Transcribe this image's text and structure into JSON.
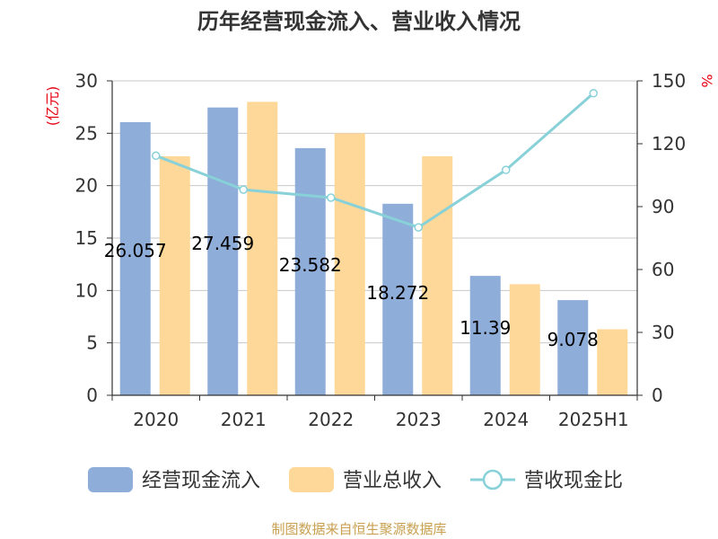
{
  "chart_data": {
    "type": "bar",
    "title": "历年经营现金流入、营业收入情况",
    "categories": [
      "2020",
      "2021",
      "2022",
      "2023",
      "2024",
      "2025H1"
    ],
    "series": [
      {
        "name": "经营现金流入",
        "type": "bar",
        "axis": "left",
        "color": "#8eadd9",
        "values": [
          26.057,
          27.459,
          23.582,
          18.272,
          11.39,
          9.078
        ],
        "labels": [
          "26.057",
          "27.459",
          "23.582",
          "18.272",
          "11.39",
          "9.078"
        ]
      },
      {
        "name": "营业总收入",
        "type": "bar",
        "axis": "left",
        "color": "#fdd899",
        "values": [
          22.8,
          28.0,
          25.0,
          22.8,
          10.6,
          6.3
        ]
      },
      {
        "name": "营收现金比",
        "type": "line",
        "axis": "right",
        "color": "#88d1d8",
        "values": [
          114.3,
          98.1,
          94.3,
          80.1,
          107.5,
          144.1
        ]
      }
    ],
    "y_left": {
      "unit": "(亿元)",
      "min": 0,
      "max": 30,
      "ticks": [
        0,
        5,
        10,
        15,
        20,
        25,
        30
      ]
    },
    "y_right": {
      "unit": "%",
      "min": 0,
      "max": 150,
      "ticks": [
        0,
        30,
        60,
        90,
        120,
        150
      ]
    },
    "grid": true,
    "legend_position": "bottom",
    "source": "制图数据来自恒生聚源数据库"
  }
}
